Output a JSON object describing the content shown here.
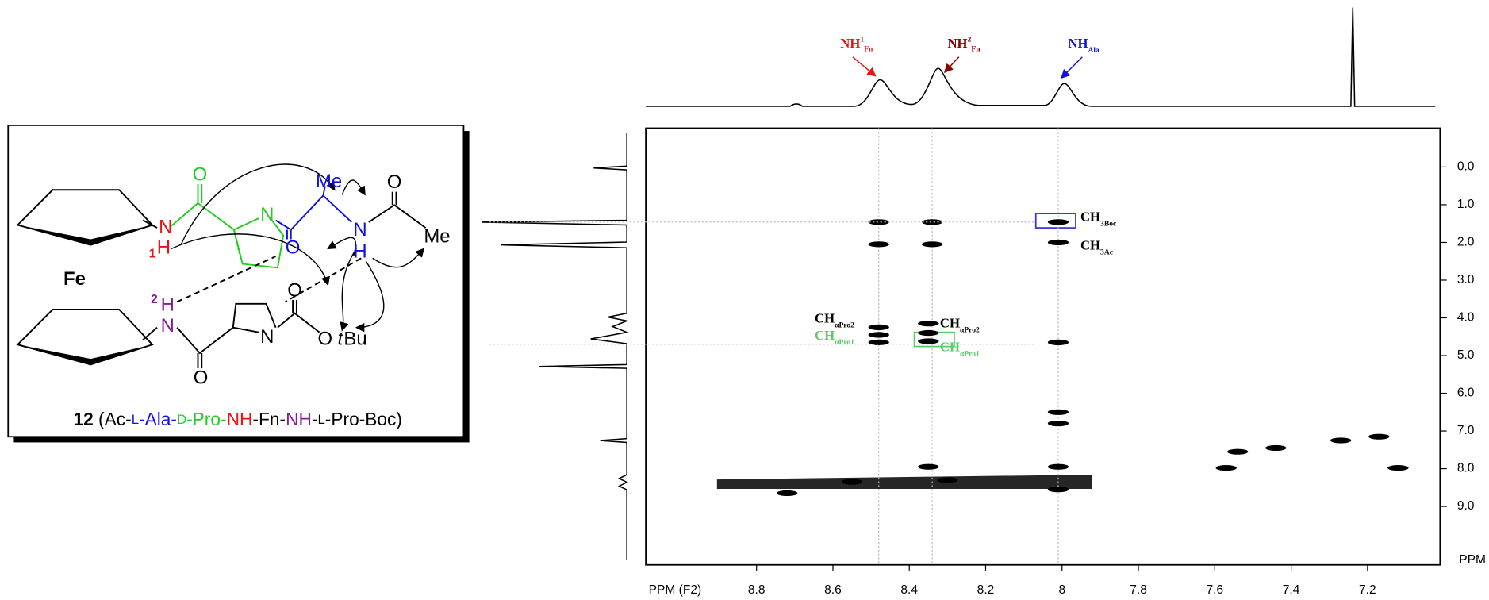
{
  "molecule": {
    "atoms": [
      {
        "label": "O"
      },
      {
        "label": "N"
      },
      {
        "label": "H"
      },
      {
        "label": "1"
      },
      {
        "label": "Fe"
      },
      {
        "label": "N"
      },
      {
        "label": "O"
      },
      {
        "label": "Me"
      },
      {
        "label": "N"
      },
      {
        "label": "H"
      },
      {
        "label": "O"
      },
      {
        "label": "Me"
      },
      {
        "label": "2"
      },
      {
        "label": "H"
      },
      {
        "label": "N"
      },
      {
        "label": "O"
      },
      {
        "label": "N"
      },
      {
        "label": "O"
      },
      {
        "label": "O"
      },
      {
        "label": "t"
      },
      {
        "label": "Bu"
      }
    ],
    "caption": [
      {
        "text": "12"
      },
      {
        "text": " (Ac-"
      },
      {
        "text": "L"
      },
      {
        "text": "-Ala-"
      },
      {
        "text": "D"
      },
      {
        "text": "-Pro-"
      },
      {
        "text": "NH"
      },
      {
        "text": "-Fn-"
      },
      {
        "text": "NH"
      },
      {
        "text": "-"
      },
      {
        "text": "L"
      },
      {
        "text": "-Pro-Boc)"
      }
    ]
  },
  "spectrum": {
    "xlabel": "PPM (F2)",
    "ylabel": "PPM",
    "xlim": [
      9.09,
      7.01
    ],
    "ylim": [
      -1.03,
      10.55
    ],
    "xticks": [
      8.8,
      8.6,
      8.4,
      8.2,
      8.0,
      7.8,
      7.6,
      7.4,
      7.2
    ],
    "yticks": [
      {
        "value": 0,
        "label": "0.0"
      },
      {
        "value": 1,
        "label": "1.0"
      },
      {
        "value": 2,
        "label": "2.0"
      },
      {
        "value": 3,
        "label": "3.0"
      },
      {
        "value": 4,
        "label": "4.0"
      },
      {
        "value": 5,
        "label": "5.0"
      },
      {
        "value": 6,
        "label": "6.0"
      },
      {
        "value": 7,
        "label": "7.0"
      },
      {
        "value": 8,
        "label": "8.0"
      },
      {
        "value": 9,
        "label": "9.0"
      }
    ],
    "guides_x": [
      8.48,
      8.34,
      8.01
    ],
    "guides_y": [
      1.46,
      4.7
    ],
    "peaks": [
      [
        8.48,
        1.46
      ],
      [
        8.34,
        1.46
      ],
      [
        8.01,
        1.46
      ],
      [
        8.01,
        2.0
      ],
      [
        8.48,
        2.05
      ],
      [
        8.34,
        2.05
      ],
      [
        8.48,
        4.25
      ],
      [
        8.48,
        4.45
      ],
      [
        8.48,
        4.65
      ],
      [
        8.35,
        4.15
      ],
      [
        8.35,
        4.4
      ],
      [
        8.35,
        4.62
      ],
      [
        8.01,
        4.65
      ],
      [
        8.01,
        6.5
      ],
      [
        8.01,
        6.8
      ],
      [
        8.01,
        7.95
      ],
      [
        8.35,
        7.95
      ],
      [
        8.72,
        8.65
      ],
      [
        8.55,
        8.35
      ],
      [
        8.3,
        8.3
      ],
      [
        8.01,
        8.55
      ],
      [
        7.27,
        7.25
      ],
      [
        7.17,
        7.15
      ],
      [
        7.12,
        7.98
      ],
      [
        7.57,
        7.98
      ],
      [
        7.44,
        7.45
      ],
      [
        7.54,
        7.55
      ]
    ],
    "labels": [
      {
        "main": "CH",
        "sub": "3Boc"
      },
      {
        "main": "CH",
        "sub": "3Ac"
      },
      {
        "main": "CH",
        "sub": "αPro2"
      },
      {
        "main": "CH",
        "sub": "αPro1"
      },
      {
        "main": "CH",
        "sub": "αPro2"
      },
      {
        "main": "CH",
        "sub": "αPro1"
      }
    ],
    "annotations": [
      {
        "main": "NH",
        "sup": "1",
        "sub": "Fn"
      },
      {
        "main": "NH",
        "sup": "2",
        "sub": "Fn"
      },
      {
        "main": "NH",
        "sub": "Ala"
      }
    ]
  }
}
